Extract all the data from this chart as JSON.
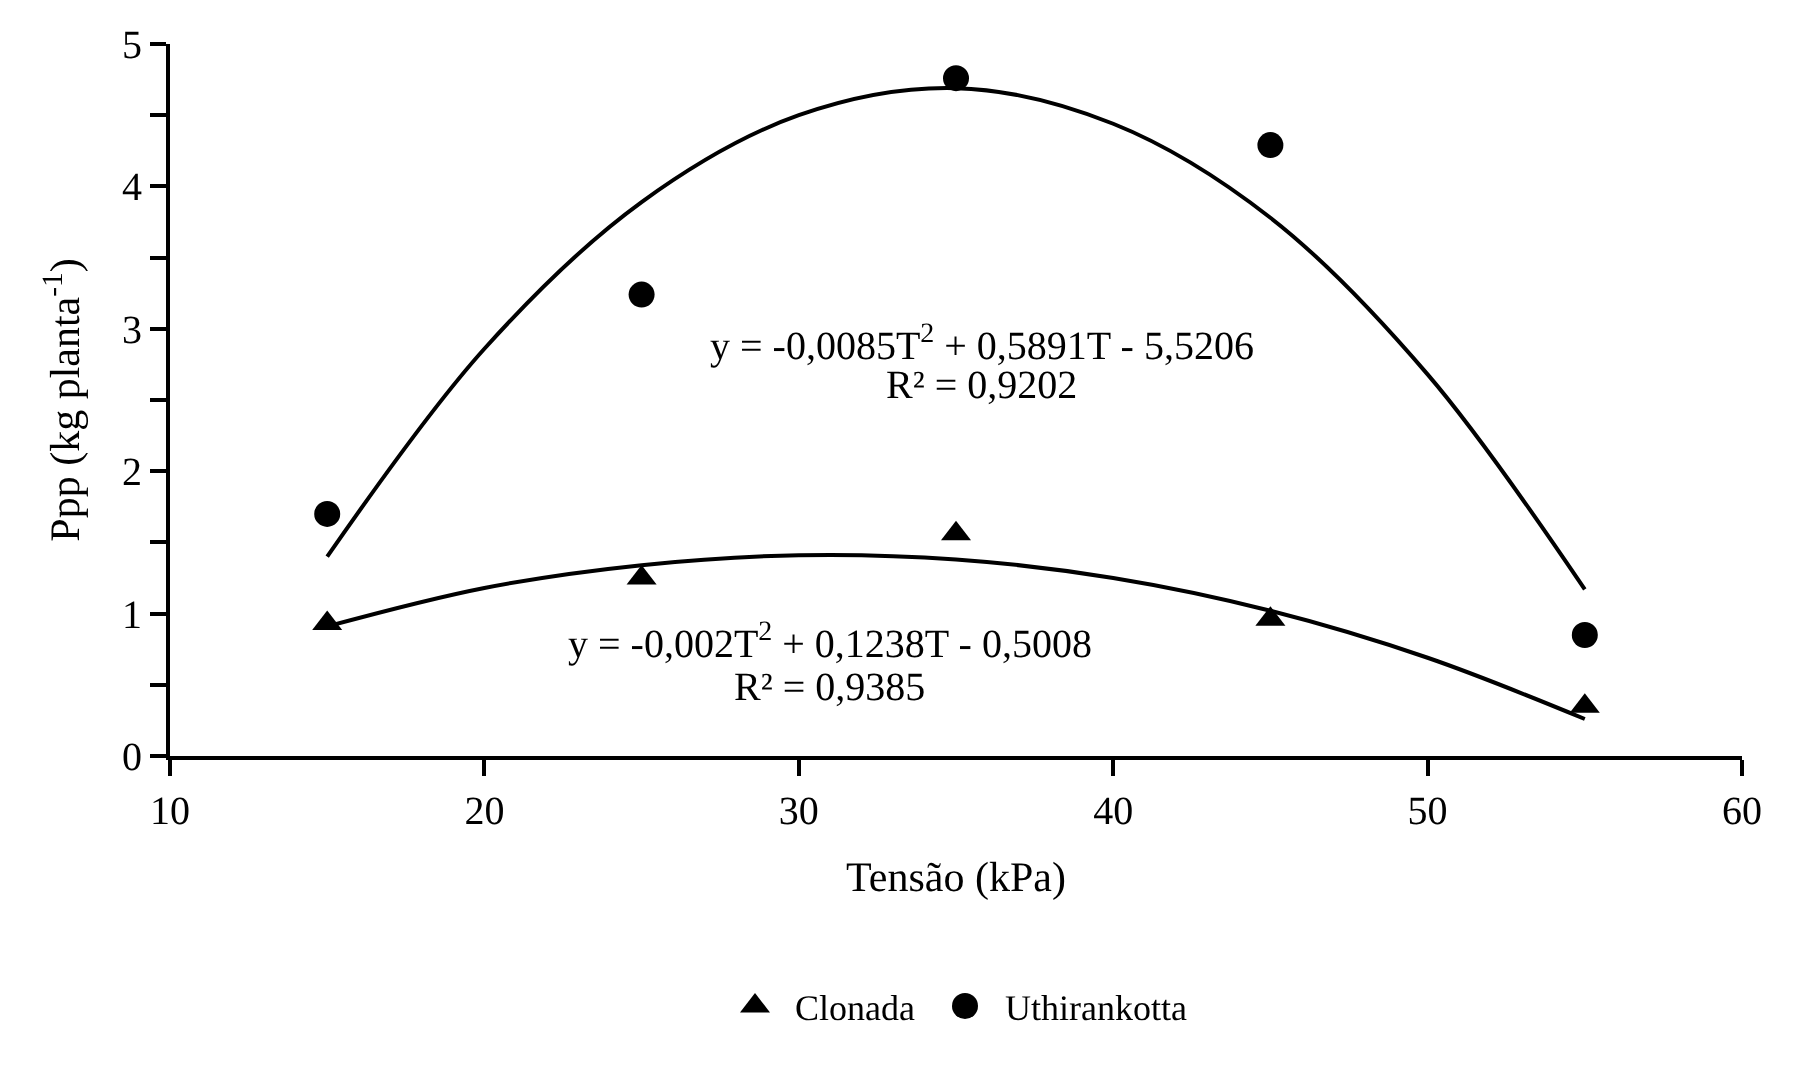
{
  "chart_data": {
    "type": "scatter",
    "xlabel": "Tensão (kPa)",
    "ylabel": "Ppp (kg planta$^{-1}$)",
    "xlim": [
      10,
      60
    ],
    "xticks": [
      10,
      20,
      30,
      40,
      50,
      60
    ],
    "ylim": [
      0,
      5
    ],
    "yticks": [
      0,
      {
        "value": 0.5,
        "label": null
      },
      1,
      {
        "value": 1.5,
        "label": null
      },
      2,
      {
        "value": 2.5,
        "label": null
      },
      3,
      {
        "value": 3.5,
        "label": null
      },
      4,
      {
        "value": 4.5,
        "label": null
      },
      5
    ],
    "x": [
      15,
      25,
      35,
      45,
      55
    ],
    "series": [
      {
        "name": "Clonada",
        "color": "#000000",
        "marker": "triangle",
        "values": [
          0.93,
          1.25,
          1.56,
          0.96,
          0.35
        ]
      },
      {
        "name": "Uthirankotta",
        "color": "#000000",
        "marker": "circle",
        "values": [
          1.7,
          3.24,
          4.76,
          4.29,
          0.85
        ]
      },
      {
        "type": "line",
        "color": "#000000",
        "x": [
          15,
          20,
          25,
          30,
          35,
          40,
          45,
          50,
          55
        ],
        "values": [
          0.91,
          1.18,
          1.34,
          1.41,
          1.38,
          1.25,
          1.02,
          0.69,
          0.26
        ]
      },
      {
        "type": "line",
        "color": "#000000",
        "x": [
          15,
          20,
          25,
          30,
          35,
          40,
          45,
          50,
          55
        ],
        "values": [
          1.4,
          2.86,
          3.89,
          4.5,
          4.69,
          4.44,
          3.78,
          2.68,
          1.17
        ]
      }
    ],
    "annotations": [
      "y = -0,0085T$^{2}$ + 0,5891T - 5,5206",
      "R² = 0,9202",
      "y = -0,002T$^{2}$ + 0,1238T - 0,5008",
      "R² = 0,9385"
    ],
    "legend": "bottom"
  }
}
